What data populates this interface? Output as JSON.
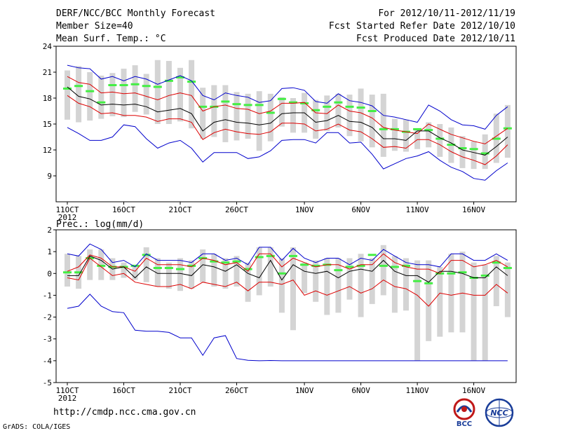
{
  "header": {
    "title": "DERF/NCC/BCC Monthly Forecast",
    "member_size": "Member Size=40",
    "variable": "Mean Surf. Temp.: °C",
    "period": "For 2012/10/11-2012/11/19",
    "start": "Fcst Started Refer Date 2012/10/10",
    "produced": "Fcst Produced Date 2012/10/11"
  },
  "footer": {
    "url": "http://cmdp.ncc.cma.gov.cn",
    "credit": "GrADS: COLA/IGES",
    "logo_bcc": "BCC",
    "logo_ncc": "NCC"
  },
  "colors": {
    "ensemble_bar": "#d4d4d4",
    "mean_marker": "#44ee44",
    "envelope": "#0000cc",
    "spread": "#dd0000",
    "median": "#000000"
  },
  "chart_data": [
    {
      "type": "line",
      "title": "Mean Surf. Temp.: °C",
      "ylabel": "",
      "xlabel": "",
      "ylim": [
        6,
        24
      ],
      "yticks": [
        24,
        21,
        18,
        15,
        12,
        9
      ],
      "xticks": [
        {
          "day": 0,
          "label": "11OCT"
        },
        {
          "day": 5,
          "label": "16OCT"
        },
        {
          "day": 10,
          "label": "21OCT"
        },
        {
          "day": 15,
          "label": "26OCT"
        },
        {
          "day": 21,
          "label": "1NOV"
        },
        {
          "day": 26,
          "label": "6NOV"
        },
        {
          "day": 31,
          "label": "11NOV"
        },
        {
          "day": 36,
          "label": "16NOV"
        }
      ],
      "year_label": "2012",
      "days": [
        0,
        1,
        2,
        3,
        4,
        5,
        6,
        7,
        8,
        9,
        10,
        11,
        12,
        13,
        14,
        15,
        16,
        17,
        18,
        19,
        20,
        21,
        22,
        23,
        24,
        25,
        26,
        27,
        28,
        29,
        30,
        31,
        32,
        33,
        34,
        35,
        36,
        37,
        38,
        39
      ],
      "series": [
        {
          "name": "max",
          "values": [
            21.8,
            21.5,
            21.4,
            20.2,
            20.5,
            20.0,
            20.5,
            20.2,
            19.6,
            20.1,
            20.6,
            20.0,
            18.3,
            17.8,
            18.6,
            18.3,
            18.1,
            17.5,
            17.7,
            19.1,
            19.2,
            18.9,
            17.6,
            17.4,
            18.5,
            17.7,
            17.5,
            17.1,
            16.0,
            15.8,
            15.5,
            15.2,
            17.2,
            16.5,
            15.5,
            14.9,
            14.8,
            14.4,
            16.0,
            17.0
          ]
        },
        {
          "name": "upper",
          "values": [
            20.5,
            19.8,
            19.6,
            18.6,
            18.7,
            18.5,
            18.6,
            18.2,
            17.8,
            18.3,
            18.6,
            18.3,
            16.5,
            17.0,
            17.2,
            16.8,
            16.7,
            16.2,
            16.5,
            17.4,
            17.4,
            17.5,
            16.3,
            16.2,
            17.2,
            16.5,
            16.3,
            15.7,
            14.6,
            14.3,
            14.1,
            13.9,
            15.0,
            14.4,
            13.8,
            13.4,
            13.0,
            12.7,
            13.6,
            14.5
          ]
        },
        {
          "name": "median",
          "values": [
            19.3,
            18.2,
            17.9,
            17.2,
            17.3,
            17.2,
            17.3,
            17.0,
            16.4,
            16.6,
            16.8,
            16.2,
            14.2,
            15.2,
            15.5,
            15.2,
            15.1,
            14.9,
            15.1,
            16.2,
            16.3,
            16.3,
            15.2,
            15.4,
            16.0,
            15.3,
            15.2,
            14.6,
            13.3,
            13.3,
            13.1,
            14.2,
            14.2,
            13.4,
            12.8,
            12.0,
            11.7,
            11.4,
            12.4,
            13.5
          ]
        },
        {
          "name": "lower",
          "values": [
            18.3,
            17.4,
            17.0,
            16.2,
            16.3,
            16.0,
            16.0,
            15.8,
            15.3,
            15.6,
            15.6,
            15.2,
            13.2,
            14.0,
            14.4,
            14.1,
            13.9,
            13.8,
            14.1,
            15.1,
            15.1,
            15.0,
            14.2,
            14.4,
            15.0,
            14.3,
            14.1,
            13.3,
            12.3,
            12.4,
            12.2,
            13.2,
            13.2,
            12.6,
            11.8,
            11.2,
            10.8,
            10.3,
            11.3,
            12.6
          ]
        },
        {
          "name": "min",
          "values": [
            14.6,
            13.9,
            13.1,
            13.1,
            13.5,
            14.9,
            14.7,
            13.3,
            12.2,
            12.8,
            13.1,
            12.2,
            10.6,
            11.7,
            11.7,
            11.7,
            11.0,
            11.2,
            11.9,
            13.1,
            13.2,
            13.2,
            12.8,
            14.0,
            14.0,
            12.8,
            12.9,
            11.5,
            9.8,
            10.4,
            11.0,
            11.3,
            11.8,
            10.8,
            10.0,
            9.5,
            8.7,
            8.5,
            9.6,
            10.5
          ]
        }
      ],
      "bars": {
        "low": [
          15.5,
          15.2,
          15.4,
          15.6,
          15.9,
          15.8,
          16.4,
          16.1,
          15.0,
          15.0,
          15.3,
          14.5,
          13.3,
          13.5,
          12.9,
          13.1,
          13.3,
          11.9,
          13.0,
          14.7,
          14.0,
          14.0,
          13.3,
          14.2,
          14.6,
          13.6,
          13.0,
          12.3,
          11.2,
          11.9,
          11.8,
          12.1,
          12.3,
          11.2,
          10.5,
          9.9,
          9.8,
          9.8,
          10.5,
          11.1
        ],
        "high": [
          21.2,
          21.7,
          21.0,
          20.6,
          20.9,
          21.4,
          21.8,
          20.8,
          22.4,
          22.3,
          21.5,
          22.4,
          19.2,
          19.5,
          19.5,
          18.7,
          18.5,
          18.8,
          18.5,
          18.1,
          18.0,
          18.6,
          17.8,
          18.3,
          18.5,
          18.4,
          19.1,
          18.4,
          18.5,
          15.6,
          15.5,
          14.5,
          15.2,
          15.0,
          14.6,
          13.6,
          13.0,
          13.8,
          16.2,
          17.2
        ]
      },
      "mean_markers": [
        19.1,
        19.4,
        18.8,
        17.5,
        19.5,
        19.5,
        19.6,
        19.4,
        19.3,
        20.0,
        20.4,
        19.9,
        17.0,
        17.0,
        17.6,
        17.3,
        17.2,
        17.2,
        16.3,
        17.9,
        17.5,
        17.4,
        16.6,
        17.0,
        17.5,
        17.0,
        16.9,
        16.5,
        14.4,
        14.4,
        14.1,
        14.4,
        14.3,
        13.3,
        12.6,
        12.2,
        12.1,
        11.6,
        13.3,
        14.5
      ]
    },
    {
      "type": "line",
      "title": "Prec.: log(mm/d)",
      "ylabel": "",
      "xlabel": "",
      "ylim": [
        -5,
        2
      ],
      "yticks": [
        2,
        1,
        0,
        -1,
        -2,
        -3,
        -4,
        -5
      ],
      "xticks": [
        {
          "day": 0,
          "label": "11OCT"
        },
        {
          "day": 5,
          "label": "16OCT"
        },
        {
          "day": 10,
          "label": "21OCT"
        },
        {
          "day": 15,
          "label": "26OCT"
        },
        {
          "day": 21,
          "label": "1NOV"
        },
        {
          "day": 26,
          "label": "6NOV"
        },
        {
          "day": 31,
          "label": "11NOV"
        },
        {
          "day": 36,
          "label": "16NOV"
        }
      ],
      "year_label": "2012",
      "days": [
        0,
        1,
        2,
        3,
        4,
        5,
        6,
        7,
        8,
        9,
        10,
        11,
        12,
        13,
        14,
        15,
        16,
        17,
        18,
        19,
        20,
        21,
        22,
        23,
        24,
        25,
        26,
        27,
        28,
        29,
        30,
        31,
        32,
        33,
        34,
        35,
        36,
        37,
        38,
        39
      ],
      "series": [
        {
          "name": "max",
          "values": [
            0.9,
            0.8,
            1.35,
            1.1,
            0.5,
            0.6,
            0.3,
            0.9,
            0.6,
            0.6,
            0.6,
            0.5,
            0.9,
            0.9,
            0.6,
            0.7,
            0.4,
            1.2,
            1.2,
            0.6,
            1.15,
            0.7,
            0.5,
            0.7,
            0.7,
            0.4,
            0.7,
            0.6,
            1.1,
            0.8,
            0.5,
            0.4,
            0.4,
            0.3,
            0.9,
            0.9,
            0.6,
            0.6,
            0.9,
            0.6
          ]
        },
        {
          "name": "upper",
          "values": [
            0.1,
            0.3,
            0.85,
            0.7,
            0.3,
            0.3,
            0.1,
            0.7,
            0.4,
            0.4,
            0.4,
            0.3,
            0.7,
            0.6,
            0.4,
            0.5,
            0.1,
            0.9,
            0.9,
            0.3,
            0.7,
            0.5,
            0.3,
            0.4,
            0.4,
            0.2,
            0.4,
            0.4,
            0.9,
            0.5,
            0.3,
            0.2,
            0.2,
            0.0,
            0.6,
            0.6,
            0.3,
            0.4,
            0.6,
            0.3
          ]
        },
        {
          "name": "median",
          "values": [
            -0.1,
            -0.1,
            0.8,
            0.6,
            0.2,
            0.3,
            -0.2,
            0.3,
            0.0,
            0.0,
            0.0,
            -0.1,
            0.4,
            0.3,
            0.1,
            0.4,
            0.0,
            -0.2,
            0.6,
            -0.3,
            0.4,
            0.1,
            0.0,
            0.1,
            -0.2,
            0.1,
            0.2,
            0.1,
            0.6,
            0.1,
            -0.1,
            -0.1,
            -0.4,
            0.1,
            0.1,
            0.0,
            -0.2,
            -0.2,
            0.3,
            -0.1
          ]
        },
        {
          "name": "lower",
          "values": [
            -0.2,
            -0.3,
            0.7,
            0.3,
            -0.1,
            0.0,
            -0.4,
            -0.5,
            -0.6,
            -0.6,
            -0.5,
            -0.7,
            -0.4,
            -0.5,
            -0.6,
            -0.4,
            -0.8,
            -0.4,
            -0.4,
            -0.5,
            -0.3,
            -1.0,
            -0.8,
            -1.0,
            -0.8,
            -0.6,
            -0.9,
            -0.7,
            -0.3,
            -0.6,
            -0.7,
            -1.0,
            -1.5,
            -0.9,
            -1.0,
            -0.9,
            -1.0,
            -1.0,
            -0.5,
            -0.9
          ]
        },
        {
          "name": "min",
          "values": [
            -1.6,
            -1.5,
            -0.95,
            -1.5,
            -1.75,
            -1.8,
            -2.6,
            -2.65,
            -2.65,
            -2.7,
            -2.95,
            -2.95,
            -3.75,
            -2.95,
            -2.85,
            -3.9,
            -3.98,
            -4.0,
            -3.99,
            -4.0,
            -4.0,
            -4.0,
            -4.0,
            -4.0,
            -4.0,
            -4.0,
            -4.0,
            -4.0,
            -4.0,
            -4.0,
            -4.0,
            -4.0,
            -4.0,
            -4.0,
            -4.0,
            -4.0,
            -4.0,
            -4.0,
            -4.0,
            -4.0
          ]
        }
      ],
      "bars": {
        "low": [
          -0.6,
          -0.7,
          -0.3,
          -0.3,
          -0.3,
          -0.2,
          -0.3,
          -0.4,
          -0.6,
          -0.7,
          -0.8,
          -0.7,
          -0.4,
          -0.6,
          -0.7,
          -0.6,
          -1.3,
          -1.0,
          -0.6,
          -1.8,
          -2.6,
          -0.9,
          -1.3,
          -1.9,
          -1.8,
          -1.2,
          -2.0,
          -1.4,
          -1.0,
          -1.8,
          -1.7,
          -4.0,
          -3.1,
          -2.9,
          -2.7,
          -2.7,
          -4.0,
          -4.0,
          -1.5,
          -2.0
        ],
        "high": [
          0.9,
          0.8,
          1.1,
          1.1,
          0.7,
          0.5,
          0.3,
          1.2,
          0.7,
          0.5,
          0.7,
          0.6,
          1.1,
          0.9,
          0.7,
          0.8,
          0.5,
          1.2,
          1.2,
          0.7,
          1.2,
          0.5,
          0.6,
          0.7,
          0.7,
          0.7,
          0.9,
          0.7,
          1.3,
          0.8,
          0.7,
          0.6,
          0.6,
          0.3,
          0.9,
          1.0,
          0.5,
          0.4,
          0.8,
          0.5
        ]
      },
      "mean_markers": [
        0.05,
        0.05,
        0.7,
        0.35,
        0.3,
        0.3,
        0.35,
        0.85,
        0.25,
        0.25,
        0.2,
        0.35,
        0.7,
        0.55,
        0.5,
        0.55,
        0.2,
        0.75,
        0.8,
        0.0,
        0.8,
        0.4,
        0.35,
        0.4,
        0.15,
        0.3,
        0.35,
        0.85,
        0.35,
        0.3,
        0.35,
        -0.35,
        -0.45,
        0.0,
        0.0,
        0.05,
        -0.2,
        -0.1,
        0.5,
        0.25
      ]
    }
  ]
}
